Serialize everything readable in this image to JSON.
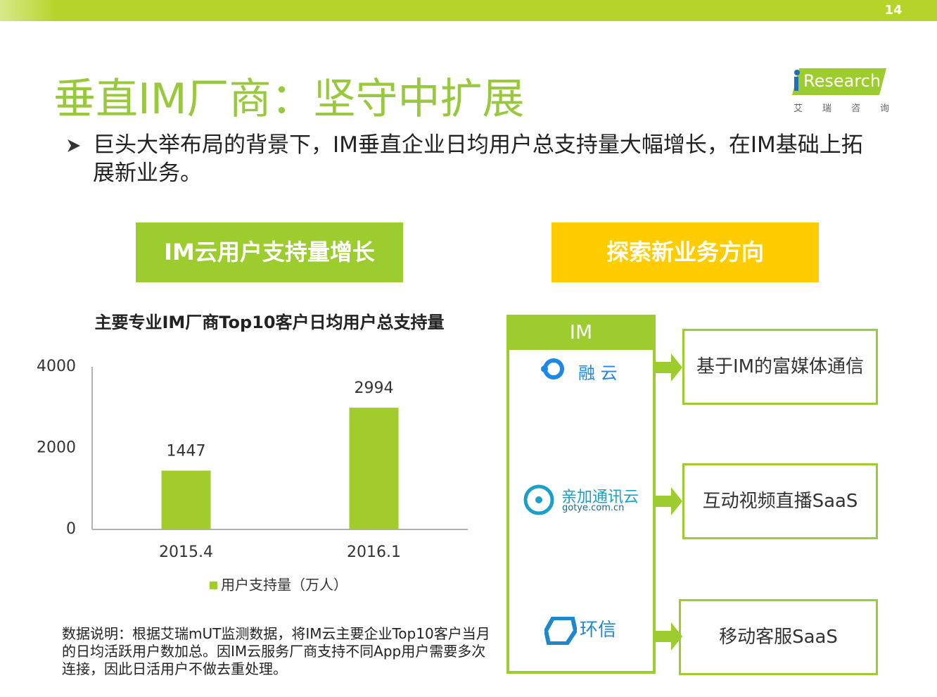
{
  "page_number": "14",
  "header": {
    "title": "垂直IM厂商：坚守中扩展",
    "logo": "Research",
    "logo_sub": "艾瑞咨询"
  },
  "bullet": "巨头大举布局的背景下，IM垂直企业日均用户总支持量大幅增长，在IM基础上拓展新业务。",
  "left_section": "IM云用户支持量增长",
  "right_section": "探索新业务方向",
  "chart_data": {
    "type": "bar",
    "title": "主要专业IM厂商Top10客户日均用户总支持量",
    "categories": [
      "2015.4",
      "2016.1"
    ],
    "series": [
      {
        "name": "用户支持量（万人）",
        "color": "#a2cc2e",
        "values": [
          1447,
          2994
        ]
      }
    ],
    "ylim": [
      0,
      4000
    ],
    "yticks": [
      0,
      2000,
      4000
    ],
    "grid": false
  },
  "note": "数据说明：根据艾瑞mUT监测数据，将IM云主要企业Top10客户当月的日均活跃用户数加总。因IM云服务厂商支持不同App用户需要多次连接，因此日活用户不做去重处理。",
  "diagram": {
    "source": "IM",
    "vendors": [
      {
        "name": "融 云"
      },
      {
        "name": "亲加通讯云",
        "sub": "gotye.com.cn"
      },
      {
        "name": "环信"
      }
    ],
    "directions": [
      "基于IM的富媒体通信",
      "互动视频直播SaaS",
      "移动客服SaaS"
    ]
  }
}
